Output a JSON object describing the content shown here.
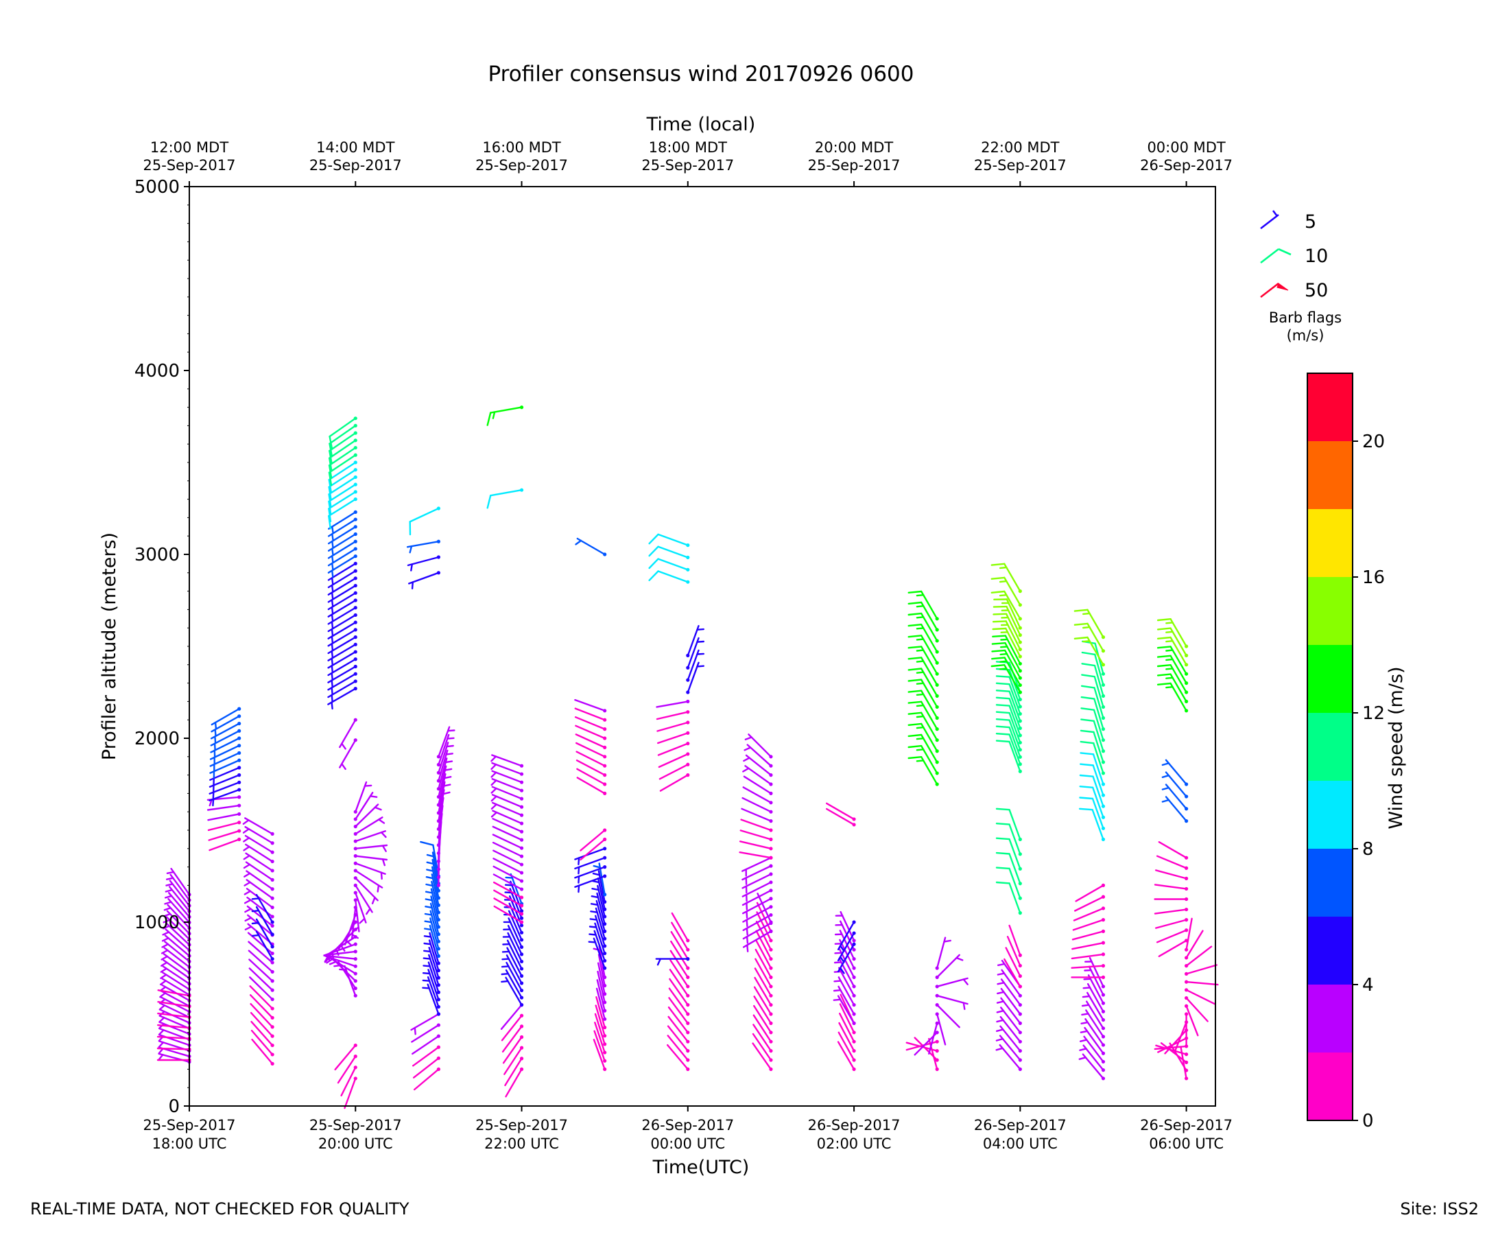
{
  "title": "Profiler consensus wind 20170926 0600",
  "footer_left": "REAL-TIME DATA, NOT CHECKED FOR QUALITY",
  "footer_right": "Site: ISS2",
  "chart_data": {
    "type": "wind-barb time-height",
    "xlabel": "Time(UTC)",
    "x2label": "Time (local)",
    "ylabel": "Profiler altitude (meters)",
    "ylim": [
      0,
      5000
    ],
    "xlim_hours": [
      0,
      12.35
    ],
    "yticks": [
      0,
      1000,
      2000,
      3000,
      4000,
      5000
    ],
    "xticks_utc": [
      {
        "h": 0,
        "line1": "25-Sep-2017",
        "line2": "18:00 UTC"
      },
      {
        "h": 2,
        "line1": "25-Sep-2017",
        "line2": "20:00 UTC"
      },
      {
        "h": 4,
        "line1": "25-Sep-2017",
        "line2": "22:00 UTC"
      },
      {
        "h": 6,
        "line1": "26-Sep-2017",
        "line2": "00:00 UTC"
      },
      {
        "h": 8,
        "line1": "26-Sep-2017",
        "line2": "02:00 UTC"
      },
      {
        "h": 10,
        "line1": "26-Sep-2017",
        "line2": "04:00 UTC"
      },
      {
        "h": 12,
        "line1": "26-Sep-2017",
        "line2": "06:00 UTC"
      }
    ],
    "xticks_local": [
      {
        "h": 0,
        "line1": "12:00 MDT",
        "line2": "25-Sep-2017"
      },
      {
        "h": 2,
        "line1": "14:00 MDT",
        "line2": "25-Sep-2017"
      },
      {
        "h": 4,
        "line1": "16:00 MDT",
        "line2": "25-Sep-2017"
      },
      {
        "h": 6,
        "line1": "18:00 MDT",
        "line2": "25-Sep-2017"
      },
      {
        "h": 8,
        "line1": "20:00 MDT",
        "line2": "25-Sep-2017"
      },
      {
        "h": 10,
        "line1": "22:00 MDT",
        "line2": "25-Sep-2017"
      },
      {
        "h": 12,
        "line1": "00:00 MDT",
        "line2": "26-Sep-2017"
      }
    ],
    "colorbar": {
      "label": "Wind speed (m/s)",
      "bounds": [
        0,
        2,
        4,
        6,
        8,
        10,
        12,
        14,
        16,
        18,
        20,
        22
      ],
      "ticks": [
        0,
        4,
        8,
        12,
        16,
        20
      ],
      "colors": [
        "#ff00c8",
        "#b900ff",
        "#2200ff",
        "#0055ff",
        "#00eaff",
        "#00ff88",
        "#00ff00",
        "#88ff00",
        "#ffe600",
        "#ff6600",
        "#ff0033"
      ]
    },
    "barb_legend": {
      "title_line1": "Barb flags",
      "title_line2": "(m/s)",
      "items": [
        {
          "label": "5",
          "kind": "half",
          "color": "#2200ff"
        },
        {
          "label": "10",
          "kind": "full",
          "color": "#00ff88"
        },
        {
          "label": "50",
          "kind": "flag",
          "color": "#ff0033"
        }
      ]
    },
    "profiles": [
      {
        "h": 0.0,
        "segments": [
          {
            "z0": 240,
            "z1": 1150,
            "dz": 30,
            "dir0": 285,
            "dir1": 325,
            "spd0": 2.5,
            "spd1": 3.5
          },
          {
            "z0": 250,
            "z1": 600,
            "dz": 60,
            "dir0": 270,
            "dir1": 280,
            "spd0": 1.5,
            "spd1": 1.5
          }
        ]
      },
      {
        "h": 0.6,
        "segments": [
          {
            "z0": 1450,
            "z1": 1680,
            "dz": 50,
            "dir0": 250,
            "dir1": 265,
            "spd0": 1.5,
            "spd1": 2.5
          },
          {
            "z0": 1720,
            "z1": 2160,
            "dz": 40,
            "dir0": 250,
            "dir1": 240,
            "spd0": 5.5,
            "spd1": 7.0
          }
        ]
      },
      {
        "h": 1.0,
        "segments": [
          {
            "z0": 230,
            "z1": 1480,
            "dz": 50,
            "dir0": 320,
            "dir1": 300,
            "spd0": 1.5,
            "spd1": 3.5
          },
          {
            "z0": 800,
            "z1": 1000,
            "dz": 60,
            "dir0": 330,
            "dir1": 330,
            "spd0": 5.0,
            "spd1": 5.0
          }
        ]
      },
      {
        "h": 2.0,
        "segments": [
          {
            "z0": 150,
            "z1": 330,
            "dz": 60,
            "dir0": 200,
            "dir1": 220,
            "spd0": 1.5,
            "spd1": 1.5
          },
          {
            "z0": 600,
            "z1": 1600,
            "dz": 40,
            "dir0": 340,
            "dir1": 20,
            "spd0": 2.5,
            "spd1": 3.5
          },
          {
            "z0": 1990,
            "z1": 2100,
            "dz": 110,
            "dir0": 210,
            "dir1": 210,
            "spd0": 3.0,
            "spd1": 3.0
          },
          {
            "z0": 2270,
            "z1": 3230,
            "dz": 40,
            "dir0": 240,
            "dir1": 238,
            "spd0": 4.5,
            "spd1": 6.5
          },
          {
            "z0": 3300,
            "z1": 3740,
            "dz": 40,
            "dir0": 238,
            "dir1": 235,
            "spd0": 9.0,
            "spd1": 11.0
          }
        ]
      },
      {
        "h": 3.0,
        "segments": [
          {
            "z0": 200,
            "z1": 500,
            "dz": 60,
            "dir0": 230,
            "dir1": 240,
            "spd0": 1.5,
            "spd1": 2.5
          },
          {
            "z0": 500,
            "z1": 1250,
            "dz": 40,
            "dir0": 340,
            "dir1": 350,
            "spd0": 5.0,
            "spd1": 7.5
          },
          {
            "z0": 1200,
            "z1": 1900,
            "dz": 45,
            "dir0": 0,
            "dir1": 20,
            "spd0": 2.0,
            "spd1": 3.0
          },
          {
            "z0": 2900,
            "z1": 3070,
            "dz": 70,
            "dir0": 250,
            "dir1": 260,
            "spd0": 5.0,
            "spd1": 6.0
          },
          {
            "z0": 3250,
            "z1": 3250,
            "dz": 60,
            "dir0": 245,
            "dir1": 245,
            "spd0": 9.0,
            "spd1": 9.0
          }
        ]
      },
      {
        "h": 4.0,
        "segments": [
          {
            "z0": 200,
            "z1": 550,
            "dz": 60,
            "dir0": 210,
            "dir1": 220,
            "spd0": 1.5,
            "spd1": 2.0
          },
          {
            "z0": 550,
            "z1": 1100,
            "dz": 40,
            "dir0": 330,
            "dir1": 340,
            "spd0": 5.0,
            "spd1": 6.0
          },
          {
            "z0": 1000,
            "z1": 1850,
            "dz": 45,
            "dir0": 300,
            "dir1": 290,
            "spd0": 1.8,
            "spd1": 3.0
          },
          {
            "z0": 3350,
            "z1": 3350,
            "dz": 60,
            "dir0": 260,
            "dir1": 260,
            "spd0": 9.0,
            "spd1": 9.0
          },
          {
            "z0": 3800,
            "z1": 3800,
            "dz": 60,
            "dir0": 260,
            "dir1": 260,
            "spd0": 13.0,
            "spd1": 13.0
          }
        ]
      },
      {
        "h": 5.0,
        "segments": [
          {
            "z0": 200,
            "z1": 700,
            "dz": 45,
            "dir0": 340,
            "dir1": 350,
            "spd0": 1.5,
            "spd1": 2.5
          },
          {
            "z0": 750,
            "z1": 1150,
            "dz": 40,
            "dir0": 340,
            "dir1": 350,
            "spd0": 5.0,
            "spd1": 6.0
          },
          {
            "z0": 1250,
            "z1": 1400,
            "dz": 60,
            "dir0": 250,
            "dir1": 250,
            "spd0": 5.0,
            "spd1": 5.0
          },
          {
            "z0": 1450,
            "z1": 1500,
            "dz": 60,
            "dir0": 230,
            "dir1": 230,
            "spd0": 1.5,
            "spd1": 1.5
          },
          {
            "z0": 1700,
            "z1": 2150,
            "dz": 50,
            "dir0": 300,
            "dir1": 290,
            "spd0": 1.5,
            "spd1": 2.0
          },
          {
            "z0": 3000,
            "z1": 3000,
            "dz": 60,
            "dir0": 300,
            "dir1": 300,
            "spd0": 7.0,
            "spd1": 7.0
          }
        ]
      },
      {
        "h": 6.0,
        "segments": [
          {
            "z0": 200,
            "z1": 900,
            "dz": 50,
            "dir0": 320,
            "dir1": 330,
            "spd0": 1.5,
            "spd1": 1.8
          },
          {
            "z0": 800,
            "z1": 800,
            "dz": 60,
            "dir0": 270,
            "dir1": 270,
            "spd0": 5.0,
            "spd1": 5.0
          },
          {
            "z0": 1800,
            "z1": 2200,
            "dz": 60,
            "dir0": 240,
            "dir1": 260,
            "spd0": 1.5,
            "spd1": 2.0
          },
          {
            "z0": 2250,
            "z1": 2450,
            "dz": 70,
            "dir0": 20,
            "dir1": 20,
            "spd0": 5.0,
            "spd1": 5.0
          },
          {
            "z0": 2850,
            "z1": 3050,
            "dz": 80,
            "dir0": 290,
            "dir1": 290,
            "spd0": 9.0,
            "spd1": 9.0
          }
        ]
      },
      {
        "h": 7.0,
        "segments": [
          {
            "z0": 200,
            "z1": 1000,
            "dz": 50,
            "dir0": 325,
            "dir1": 335,
            "spd0": 1.5,
            "spd1": 2.0
          },
          {
            "z0": 950,
            "z1": 1350,
            "dz": 45,
            "dir0": 240,
            "dir1": 245,
            "spd0": 3.0,
            "spd1": 3.5
          },
          {
            "z0": 1350,
            "z1": 1900,
            "dz": 50,
            "dir0": 280,
            "dir1": 315,
            "spd0": 1.5,
            "spd1": 3.0
          }
        ]
      },
      {
        "h": 8.0,
        "segments": [
          {
            "z0": 200,
            "z1": 450,
            "dz": 50,
            "dir0": 330,
            "dir1": 335,
            "spd0": 1.5,
            "spd1": 1.5
          },
          {
            "z0": 450,
            "z1": 900,
            "dz": 50,
            "dir0": 330,
            "dir1": 335,
            "spd0": 2.5,
            "spd1": 3.0
          },
          {
            "z0": 880,
            "z1": 1000,
            "dz": 60,
            "dir0": 210,
            "dir1": 210,
            "spd0": 5.0,
            "spd1": 5.0
          },
          {
            "z0": 1530,
            "z1": 1560,
            "dz": 50,
            "dir0": 300,
            "dir1": 300,
            "spd0": 1.5,
            "spd1": 1.5
          }
        ]
      },
      {
        "h": 9.0,
        "segments": [
          {
            "z0": 200,
            "z1": 750,
            "dz": 50,
            "dir0": 345,
            "dir1": 15,
            "spd0": 1.5,
            "spd1": 3.0
          },
          {
            "z0": 1750,
            "z1": 2650,
            "dz": 60,
            "dir0": 330,
            "dir1": 330,
            "spd0": 12.5,
            "spd1": 13.0
          }
        ]
      },
      {
        "h": 10.0,
        "segments": [
          {
            "z0": 200,
            "z1": 650,
            "dz": 50,
            "dir0": 320,
            "dir1": 325,
            "spd0": 3.0,
            "spd1": 3.0
          },
          {
            "z0": 650,
            "z1": 820,
            "dz": 60,
            "dir0": 330,
            "dir1": 340,
            "spd0": 1.5,
            "spd1": 1.5
          },
          {
            "z0": 1050,
            "z1": 1450,
            "dz": 80,
            "dir0": 340,
            "dir1": 340,
            "spd0": 11.0,
            "spd1": 11.0
          },
          {
            "z0": 1820,
            "z1": 2250,
            "dz": 40,
            "dir0": 340,
            "dir1": 340,
            "spd0": 11.0,
            "spd1": 11.5
          },
          {
            "z0": 2250,
            "z1": 2600,
            "dz": 40,
            "dir0": 330,
            "dir1": 335,
            "spd0": 13.0,
            "spd1": 15.0
          },
          {
            "z0": 2650,
            "z1": 2800,
            "dz": 75,
            "dir0": 330,
            "dir1": 330,
            "spd0": 15.0,
            "spd1": 15.0
          }
        ]
      },
      {
        "h": 11.0,
        "segments": [
          {
            "z0": 150,
            "z1": 650,
            "dz": 45,
            "dir0": 320,
            "dir1": 335,
            "spd0": 3.0,
            "spd1": 3.5
          },
          {
            "z0": 700,
            "z1": 1200,
            "dz": 60,
            "dir0": 270,
            "dir1": 240,
            "spd0": 1.5,
            "spd1": 1.5
          },
          {
            "z0": 1450,
            "z1": 2350,
            "dz": 60,
            "dir0": 340,
            "dir1": 345,
            "spd0": 9.0,
            "spd1": 11.5
          },
          {
            "z0": 2400,
            "z1": 2550,
            "dz": 70,
            "dir0": 330,
            "dir1": 330,
            "spd0": 15.0,
            "spd1": 15.0
          }
        ]
      },
      {
        "h": 12.0,
        "segments": [
          {
            "z0": 150,
            "z1": 850,
            "dz": 45,
            "dir0": 350,
            "dir1": 10,
            "spd0": 1.5,
            "spd1": 1.8
          },
          {
            "z0": 900,
            "z1": 1350,
            "dz": 60,
            "dir0": 240,
            "dir1": 300,
            "spd0": 1.5,
            "spd1": 1.5
          },
          {
            "z0": 1550,
            "z1": 1750,
            "dz": 70,
            "dir0": 320,
            "dir1": 320,
            "spd0": 7.0,
            "spd1": 7.0
          },
          {
            "z0": 2150,
            "z1": 2500,
            "dz": 50,
            "dir0": 330,
            "dir1": 330,
            "spd0": 12.5,
            "spd1": 15.0
          }
        ]
      }
    ]
  }
}
